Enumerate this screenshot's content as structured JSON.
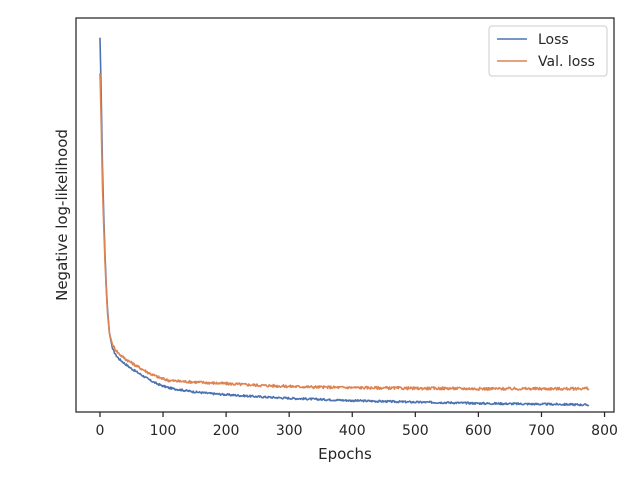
{
  "chart_data": {
    "type": "line",
    "title": "",
    "xlabel": "Epochs",
    "ylabel": "Negative log-likelihood",
    "x_ticks": [
      0,
      100,
      200,
      300,
      400,
      500,
      600,
      700,
      800
    ],
    "xlim": [
      -38,
      815
    ],
    "ylim": [
      0,
      1
    ],
    "y_ticks_shown": false,
    "grid": false,
    "legend_position": "upper right",
    "series": [
      {
        "name": "Loss",
        "color": "#4c72b0",
        "x": [
          0,
          1,
          2,
          3,
          4,
          6,
          8,
          10,
          12,
          15,
          20,
          25,
          30,
          40,
          50,
          60,
          70,
          80,
          90,
          100,
          110,
          125,
          150,
          175,
          200,
          250,
          300,
          350,
          400,
          450,
          500,
          550,
          600,
          650,
          700,
          750,
          775
        ],
        "y": [
          0.95,
          0.88,
          0.8,
          0.71,
          0.62,
          0.5,
          0.4,
          0.32,
          0.26,
          0.2,
          0.16,
          0.145,
          0.135,
          0.122,
          0.11,
          0.1,
          0.09,
          0.08,
          0.072,
          0.066,
          0.061,
          0.057,
          0.051,
          0.047,
          0.044,
          0.039,
          0.035,
          0.032,
          0.029,
          0.027,
          0.025,
          0.024,
          0.022,
          0.021,
          0.02,
          0.019,
          0.018
        ]
      },
      {
        "name": "Val. loss",
        "color": "#dd8452",
        "x": [
          0,
          1,
          2,
          3,
          4,
          6,
          8,
          10,
          12,
          15,
          20,
          25,
          30,
          40,
          50,
          60,
          70,
          80,
          90,
          100,
          110,
          125,
          150,
          175,
          200,
          250,
          300,
          350,
          400,
          450,
          500,
          550,
          600,
          650,
          700,
          750,
          775
        ],
        "y": [
          0.86,
          0.8,
          0.73,
          0.65,
          0.57,
          0.47,
          0.38,
          0.31,
          0.25,
          0.2,
          0.17,
          0.158,
          0.148,
          0.135,
          0.125,
          0.115,
          0.106,
          0.097,
          0.09,
          0.084,
          0.08,
          0.078,
          0.076,
          0.074,
          0.072,
          0.068,
          0.065,
          0.063,
          0.062,
          0.061,
          0.06,
          0.06,
          0.059,
          0.059,
          0.059,
          0.059,
          0.06
        ]
      }
    ]
  }
}
